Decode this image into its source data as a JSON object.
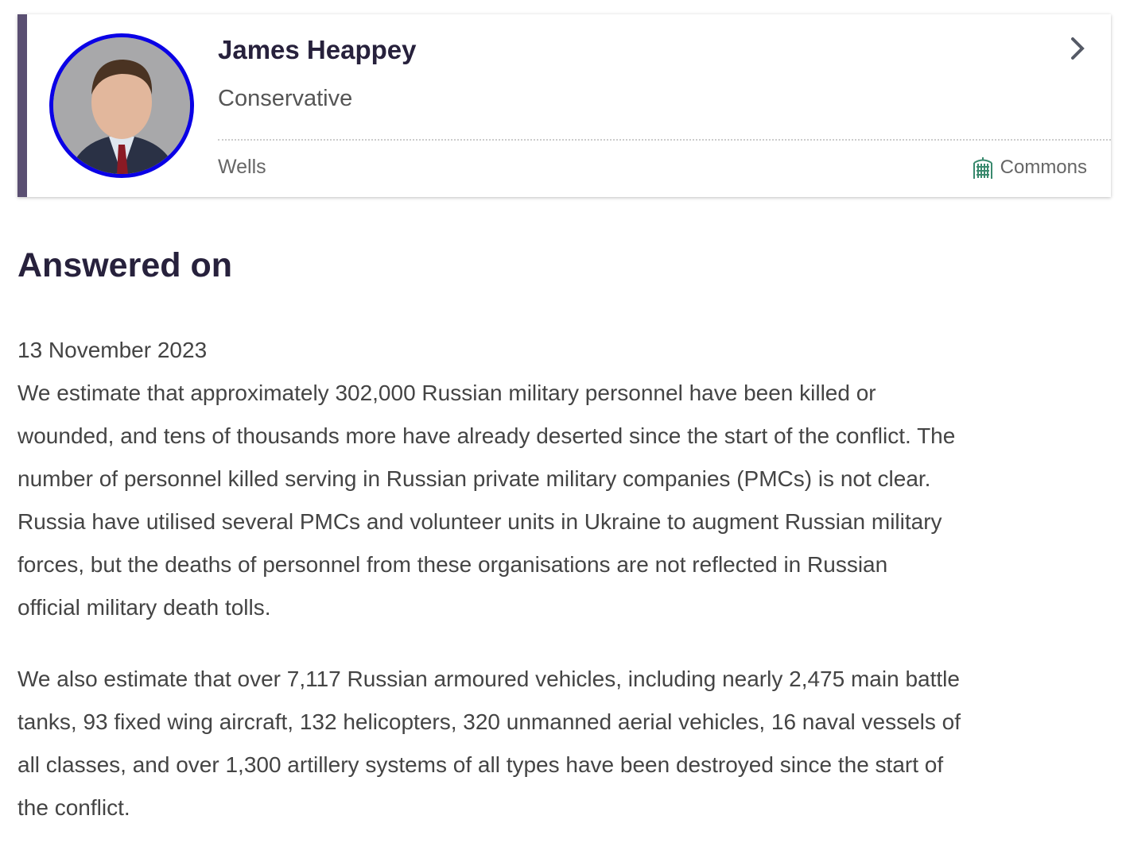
{
  "member": {
    "name": "James Heappey",
    "party": "Conservative",
    "constituency": "Wells",
    "house": "Commons",
    "party_color": "#0a00e6",
    "icons": [
      "portcullis-icon",
      "chevron-right-icon"
    ]
  },
  "answer": {
    "heading": "Answered on",
    "date": "13 November 2023",
    "paragraphs": [
      [
        "We estimate that approximately 302,000 Russian military personnel have been killed or",
        "wounded, and tens of thousands more have already deserted since the start of the conflict. The",
        "number of personnel killed serving in Russian private military companies (PMCs) is not clear.",
        "Russia have utilised several PMCs and volunteer units in Ukraine to augment Russian military",
        "forces, but the deaths of personnel from these organisations are not reflected in Russian",
        "official military death tolls."
      ],
      [
        "We also estimate that over 7,117 Russian armoured vehicles, including nearly 2,475 main battle",
        "tanks, 93 fixed wing aircraft, 132 helicopters, 320 unmanned aerial vehicles, 16 naval vessels of",
        "all classes, and over 1,300 artillery systems of all types have been destroyed since the start of",
        "the conflict."
      ]
    ]
  }
}
